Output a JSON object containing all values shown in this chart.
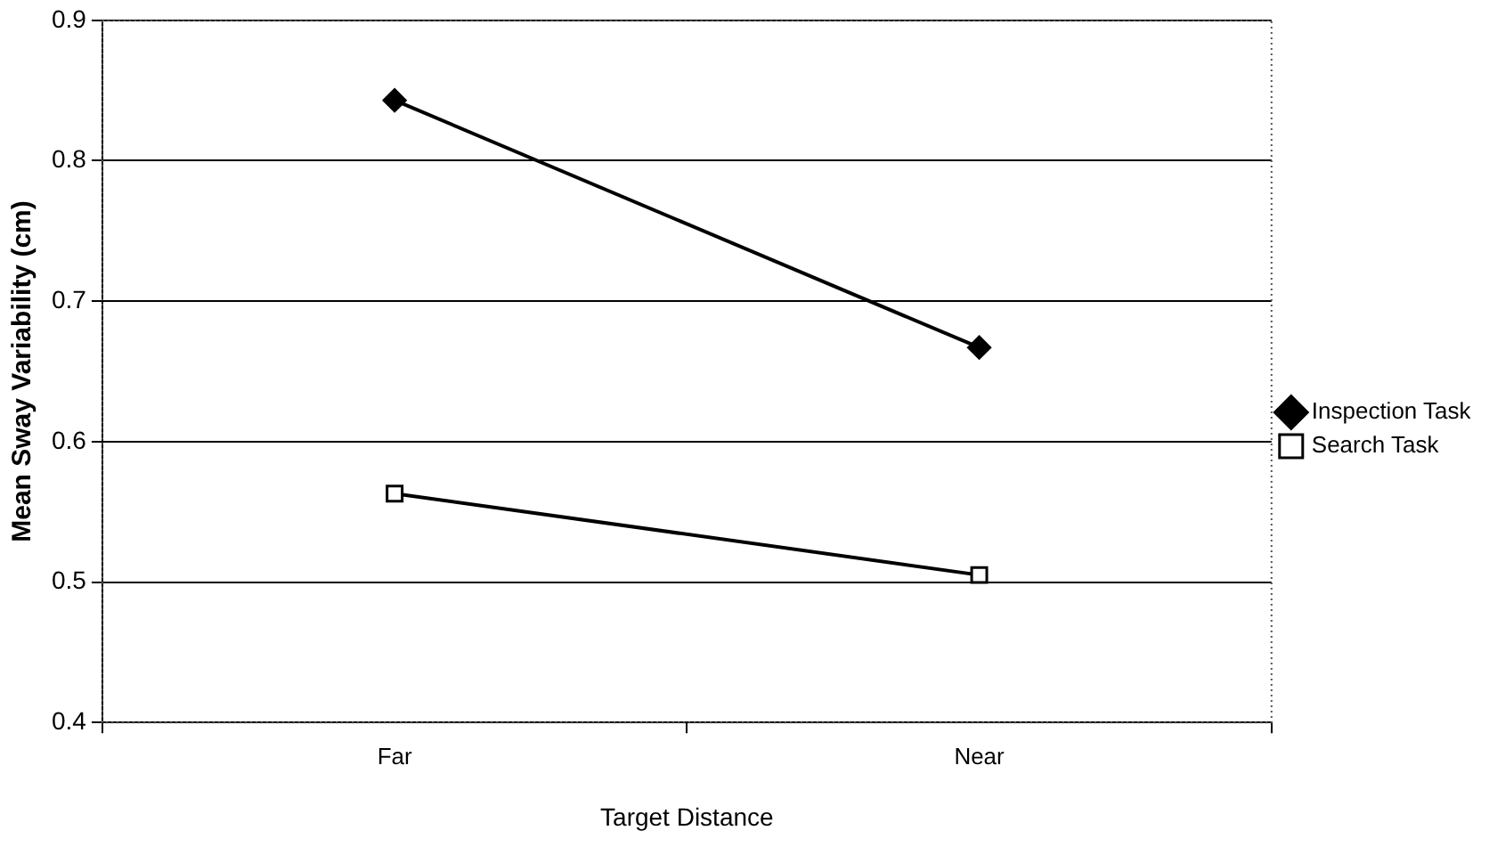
{
  "chart_data": {
    "type": "line",
    "xlabel": "Target Distance",
    "ylabel": "Mean Sway Variability (cm)",
    "categories": [
      "Far",
      "Near"
    ],
    "series": [
      {
        "name": "Inspection Task",
        "color": "#000000",
        "marker": "diamond",
        "values": [
          0.843,
          0.667
        ]
      },
      {
        "name": "Search Task",
        "color": "#000000",
        "marker": "square",
        "values": [
          0.563,
          0.505
        ]
      }
    ],
    "ylim": [
      0.4,
      0.9
    ],
    "yticks": [
      0.4,
      0.5,
      0.6,
      0.7,
      0.8,
      0.9
    ],
    "grid": "y",
    "legend": "right"
  }
}
